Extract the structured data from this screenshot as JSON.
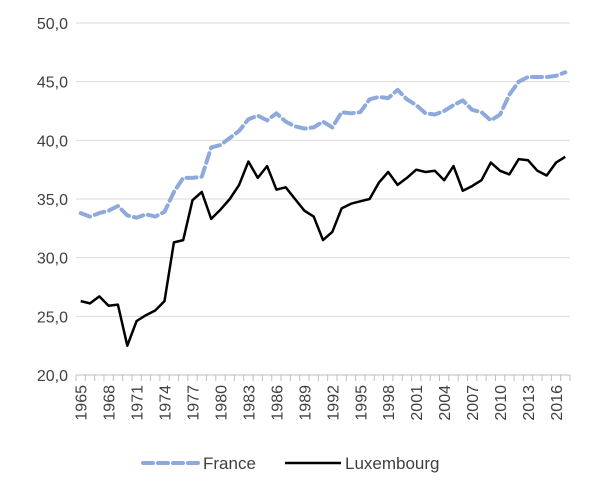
{
  "chart_data": {
    "type": "line",
    "x": [
      1965,
      1966,
      1967,
      1968,
      1969,
      1970,
      1971,
      1972,
      1973,
      1974,
      1975,
      1976,
      1977,
      1978,
      1979,
      1980,
      1981,
      1982,
      1983,
      1984,
      1985,
      1986,
      1987,
      1988,
      1989,
      1990,
      1991,
      1992,
      1993,
      1994,
      1995,
      1996,
      1997,
      1998,
      1999,
      2000,
      2001,
      2002,
      2003,
      2004,
      2005,
      2006,
      2007,
      2008,
      2009,
      2010,
      2011,
      2012,
      2013,
      2014,
      2015,
      2016,
      2017
    ],
    "x_tick_labels": [
      "1965",
      "1968",
      "1971",
      "1974",
      "1977",
      "1980",
      "1983",
      "1986",
      "1989",
      "1992",
      "1995",
      "1998",
      "2001",
      "2004",
      "2007",
      "2010",
      "2013",
      "2016"
    ],
    "y_tick_labels": [
      "20,0",
      "25,0",
      "30,0",
      "35,0",
      "40,0",
      "45,0",
      "50,0"
    ],
    "ylim": [
      20,
      50
    ],
    "y_step": 5,
    "grid": "horizontal",
    "legend_position": "bottom",
    "series": [
      {
        "name": "France",
        "color": "#8EA9DB",
        "style": "dashed",
        "values": [
          33.8,
          33.5,
          33.8,
          34.0,
          34.4,
          33.6,
          33.4,
          33.7,
          33.5,
          33.9,
          35.6,
          36.8,
          36.8,
          36.9,
          39.4,
          39.6,
          40.2,
          40.8,
          41.8,
          42.1,
          41.7,
          42.3,
          41.6,
          41.2,
          41.0,
          41.1,
          41.6,
          41.1,
          42.4,
          42.3,
          42.4,
          43.5,
          43.7,
          43.6,
          44.3,
          43.5,
          43.0,
          42.3,
          42.2,
          42.5,
          43.0,
          43.4,
          42.6,
          42.4,
          41.7,
          42.2,
          43.9,
          45.0,
          45.4,
          45.4,
          45.4,
          45.5,
          45.8
        ]
      },
      {
        "name": "Luxembourg",
        "color": "#000000",
        "style": "solid",
        "values": [
          26.3,
          26.1,
          26.7,
          25.9,
          26.0,
          22.5,
          24.6,
          25.1,
          25.5,
          26.3,
          31.3,
          31.5,
          34.9,
          35.6,
          33.3,
          34.1,
          35.0,
          36.2,
          38.2,
          36.8,
          37.8,
          35.8,
          36.0,
          35.0,
          34.0,
          33.5,
          31.5,
          32.2,
          34.2,
          34.6,
          34.8,
          35.0,
          36.4,
          37.3,
          36.2,
          36.8,
          37.5,
          37.3,
          37.4,
          36.6,
          37.8,
          35.7,
          36.1,
          36.6,
          38.1,
          37.4,
          37.1,
          38.4,
          38.3,
          37.4,
          37.0,
          38.1,
          38.6
        ]
      }
    ]
  }
}
